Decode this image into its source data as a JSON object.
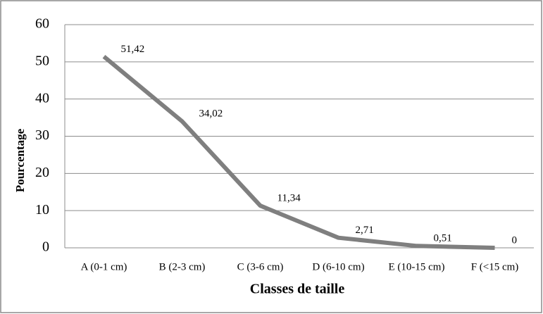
{
  "chart_data": {
    "type": "line",
    "categories": [
      "A (0-1 cm)",
      "B (2-3 cm)",
      "C (3-6 cm)",
      "D (6-10 cm)",
      "E (10-15 cm)",
      "F (<15 cm)"
    ],
    "values": [
      51.42,
      34.02,
      11.34,
      2.71,
      0.51,
      0
    ],
    "value_labels": [
      "51,42",
      "34,02",
      "11,34",
      "2,71",
      "0,51",
      "0"
    ],
    "color": "#7f7f7f",
    "x_label": "Classes de taille",
    "y_label": "Pourcentage",
    "ylim": [
      0,
      60
    ],
    "yticks": [
      0,
      10,
      20,
      30,
      40,
      50,
      60
    ],
    "grid": true
  }
}
